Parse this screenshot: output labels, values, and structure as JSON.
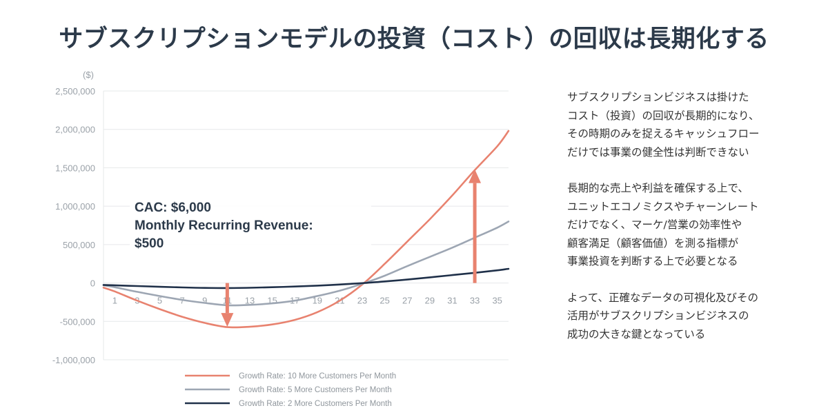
{
  "title": "サブスクリプションモデルの投資（コスト）の回収は長期化する",
  "annotation": {
    "line1": "CAC: $6,000",
    "line2": "Monthly Recurring Revenue:",
    "line3": "$500"
  },
  "right_paragraphs": [
    "サブスクリプションビジネスは掛けた\nコスト（投資）の回収が長期的になり、\nその時期のみを捉えるキャッシュフロー\nだけでは事業の健全性は判断できない",
    "長期的な売上や利益を確保する上で、\nユニットエコノミクスやチャーンレート\nだけでなく、マーケ/営業の効率性や\n顧客満足（顧客価値）を測る指標が\n事業投資を判断する上で必要となる",
    "よって、正確なデータの可視化及びその\n活用がサブスクリプションビジネスの\n成功の大きな鍵となっている"
  ],
  "chart_data": {
    "type": "line",
    "unit_label": "($)",
    "ylim": [
      -1000000,
      2500000
    ],
    "xlim": [
      1,
      36
    ],
    "y_ticks": [
      2500000,
      2000000,
      1500000,
      1000000,
      500000,
      0,
      -500000,
      -1000000
    ],
    "y_tick_labels": [
      "2,500,000",
      "2,000,000",
      "1,500,000",
      "1,000,000",
      "500,000",
      "0",
      "-500,000",
      "-1,000,000"
    ],
    "x_ticks": [
      1,
      3,
      5,
      7,
      9,
      11,
      13,
      15,
      17,
      19,
      21,
      23,
      25,
      27,
      29,
      31,
      33,
      35
    ],
    "grid": true,
    "legend_position": "bottom",
    "series": [
      {
        "name": "Growth Rate: 10 More Customers Per Month",
        "color": "#e8826f",
        "x": [
          0,
          1,
          3,
          5,
          7,
          9,
          11,
          13,
          15,
          17,
          19,
          21,
          23,
          25,
          27,
          29,
          31,
          33,
          35,
          36
        ],
        "values": [
          -60000,
          -110000,
          -230000,
          -340000,
          -440000,
          -520000,
          -575000,
          -570000,
          -540000,
          -480000,
          -380000,
          -230000,
          -20000,
          250000,
          540000,
          830000,
          1140000,
          1470000,
          1780000,
          1980000
        ]
      },
      {
        "name": "Growth Rate: 5 More Customers Per Month",
        "color": "#9da6b3",
        "x": [
          0,
          1,
          3,
          5,
          7,
          9,
          11,
          13,
          15,
          17,
          19,
          21,
          23,
          25,
          27,
          29,
          31,
          33,
          35,
          36
        ],
        "values": [
          -30000,
          -55000,
          -115000,
          -170000,
          -220000,
          -260000,
          -290000,
          -285000,
          -265000,
          -230000,
          -170000,
          -100000,
          -10000,
          95000,
          220000,
          340000,
          460000,
          590000,
          720000,
          800000
        ]
      },
      {
        "name": "Growth Rate: 2 More Customers Per Month",
        "color": "#1f3049",
        "x": [
          0,
          1,
          3,
          5,
          7,
          9,
          11,
          13,
          15,
          17,
          19,
          21,
          23,
          25,
          27,
          29,
          31,
          33,
          35,
          36
        ],
        "values": [
          -25000,
          -30000,
          -40000,
          -50000,
          -58000,
          -64000,
          -66000,
          -62000,
          -55000,
          -46000,
          -34000,
          -20000,
          -2000,
          20000,
          45000,
          73000,
          103000,
          133000,
          165000,
          185000
        ]
      }
    ],
    "arrows": [
      {
        "x": 11,
        "from": 0,
        "to": -570000,
        "color": "#e8826f"
      },
      {
        "x": 33,
        "from": 0,
        "to": 1480000,
        "color": "#e8826f"
      }
    ]
  }
}
